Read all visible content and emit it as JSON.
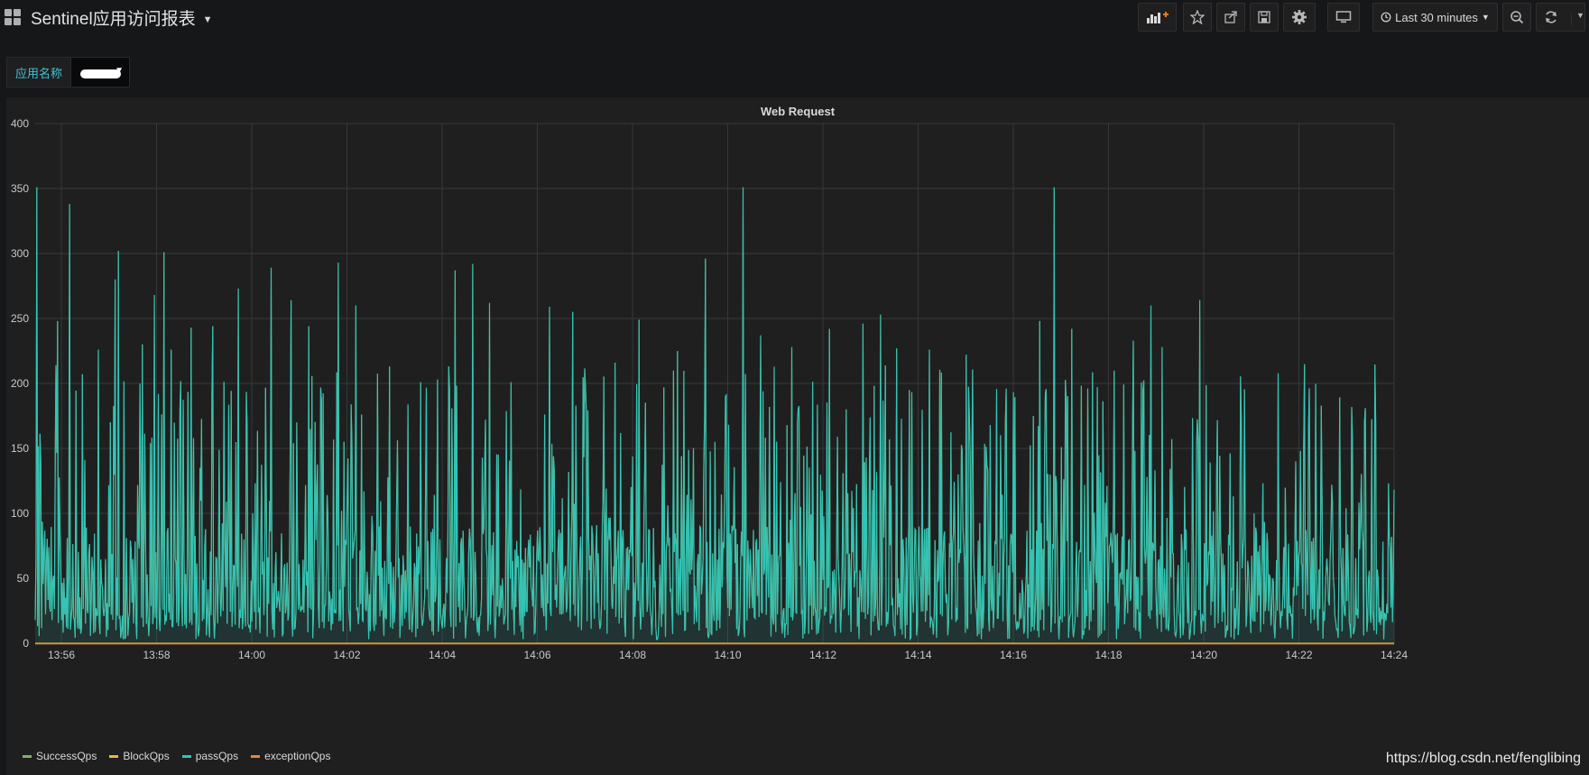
{
  "dashboard": {
    "title": "Sentinel应用访问报表"
  },
  "toolbar": {
    "time_range_label": "Last 30 minutes",
    "buttons": [
      "add-panel",
      "star",
      "share",
      "save",
      "settings",
      "tv-mode",
      "zoom-out",
      "refresh"
    ]
  },
  "variables": {
    "app_name_label": "应用名称"
  },
  "watermark": "https://blog.csdn.net/fenglibing",
  "chart_data": {
    "type": "line",
    "title": "Web Request",
    "x_ticks": [
      "13:56",
      "13:58",
      "14:00",
      "14:02",
      "14:04",
      "14:06",
      "14:08",
      "14:10",
      "14:12",
      "14:14",
      "14:16",
      "14:18",
      "14:20",
      "14:22",
      "14:24"
    ],
    "xlim": [
      "13:55:27",
      "14:24:00"
    ],
    "ylim": [
      0,
      400
    ],
    "y_ticks": [
      0,
      50,
      100,
      150,
      200,
      250,
      300,
      350,
      400
    ],
    "grid": true,
    "legend_position": "bottom-left",
    "series": [
      {
        "name": "SuccessQps",
        "color": "#7eb26d",
        "note": "overlaps passQps",
        "peaks": [
          {
            "t": "13:55:29",
            "v": 351
          },
          {
            "t": "13:55:55",
            "v": 248
          },
          {
            "t": "13:56:10",
            "v": 338
          },
          {
            "t": "13:56:26",
            "v": 207
          },
          {
            "t": "13:56:47",
            "v": 226
          },
          {
            "t": "13:57:08",
            "v": 280
          },
          {
            "t": "13:57:12",
            "v": 302
          },
          {
            "t": "13:57:42",
            "v": 230
          },
          {
            "t": "13:57:57",
            "v": 268
          },
          {
            "t": "13:58:09",
            "v": 301
          },
          {
            "t": "13:58:18",
            "v": 226
          },
          {
            "t": "13:58:44",
            "v": 243
          },
          {
            "t": "13:59:11",
            "v": 244
          },
          {
            "t": "13:59:43",
            "v": 273
          },
          {
            "t": "14:00:24",
            "v": 289
          },
          {
            "t": "14:00:50",
            "v": 264
          },
          {
            "t": "14:01:12",
            "v": 244
          },
          {
            "t": "14:01:49",
            "v": 293
          },
          {
            "t": "14:02:11",
            "v": 260
          },
          {
            "t": "14:02:54",
            "v": 213
          },
          {
            "t": "14:03:33",
            "v": 201
          },
          {
            "t": "14:04:16",
            "v": 287
          },
          {
            "t": "14:04:39",
            "v": 292
          },
          {
            "t": "14:05:00",
            "v": 262
          },
          {
            "t": "14:05:27",
            "v": 201
          },
          {
            "t": "14:06:15",
            "v": 259
          },
          {
            "t": "14:06:45",
            "v": 255
          },
          {
            "t": "14:07:38",
            "v": 216
          },
          {
            "t": "14:08:08",
            "v": 249
          },
          {
            "t": "14:08:57",
            "v": 225
          },
          {
            "t": "14:09:32",
            "v": 296
          },
          {
            "t": "14:10:19",
            "v": 351
          },
          {
            "t": "14:10:41",
            "v": 237
          },
          {
            "t": "14:11:21",
            "v": 228
          },
          {
            "t": "14:12:08",
            "v": 242
          },
          {
            "t": "14:12:51",
            "v": 246
          },
          {
            "t": "14:13:13",
            "v": 253
          },
          {
            "t": "14:13:33",
            "v": 227
          },
          {
            "t": "14:14:14",
            "v": 226
          },
          {
            "t": "14:15:01",
            "v": 222
          },
          {
            "t": "14:15:51",
            "v": 196
          },
          {
            "t": "14:16:33",
            "v": 248
          },
          {
            "t": "14:16:52",
            "v": 351
          },
          {
            "t": "14:17:14",
            "v": 242
          },
          {
            "t": "14:18:31",
            "v": 233
          },
          {
            "t": "14:18:53",
            "v": 260
          },
          {
            "t": "14:19:08",
            "v": 228
          },
          {
            "t": "14:19:55",
            "v": 264
          }
        ],
        "baseline": 85
      },
      {
        "name": "BlockQps",
        "color": "#eab839",
        "values_constant": 0
      },
      {
        "name": "passQps",
        "color": "#2fc5b9",
        "note": "same values as SuccessQps"
      },
      {
        "name": "exceptionQps",
        "color": "#ef843c",
        "values_constant": 0
      }
    ]
  }
}
